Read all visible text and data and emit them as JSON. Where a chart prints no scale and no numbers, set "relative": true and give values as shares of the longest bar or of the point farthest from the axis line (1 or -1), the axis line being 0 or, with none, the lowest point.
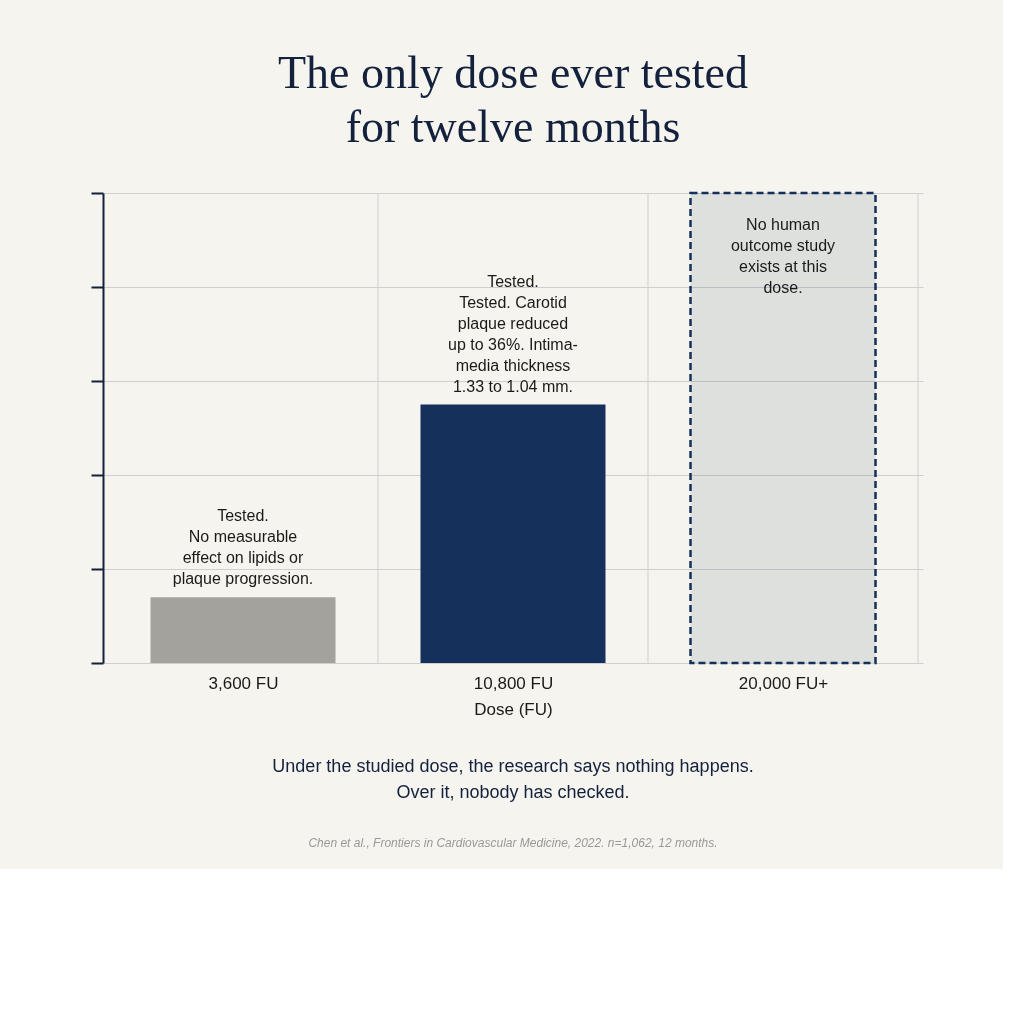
{
  "chart_data": {
    "type": "bar",
    "title": "The only dose ever tested\nfor twelve months",
    "xlabel": "Dose (FU)",
    "categories": [
      "3,600 FU",
      "10,800 FU",
      "20,000 FU+"
    ],
    "values": [
      0.14,
      0.55,
      1.0
    ],
    "colors": [
      "#a3a29d",
      "#15305a",
      "#15305a"
    ],
    "relative": true,
    "grid": true,
    "annotations": [
      "Tested.\nNo measurable\neffect on lipids or\nplaque progression.",
      "Tested.\nTested. Carotid\nplaque reduced\nup to 36%. Intima-\nmedia thickness\n1.33 to 1.04 mm.",
      "No human\noutcome study\nexists at this\ndose.",
      "Under the studied dose, the research says nothing happens.\nOver it, nobody has checked.",
      "Chen et al., Frontiers in Cardiovascular Medicine, 2022. n=1,062, 12 months."
    ]
  }
}
